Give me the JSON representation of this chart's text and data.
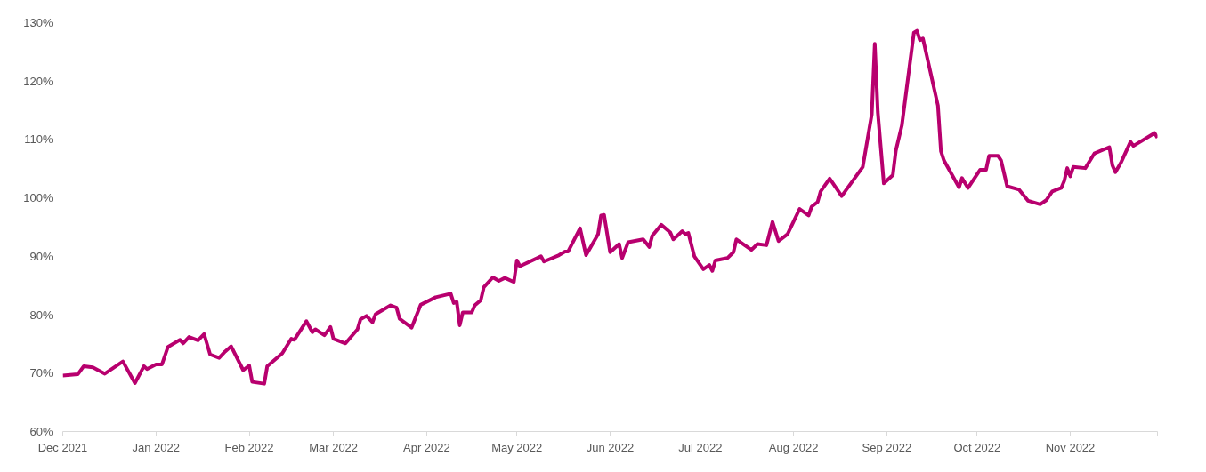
{
  "chart_data": {
    "type": "line",
    "line_style": "solid",
    "marker": "none",
    "grid": false,
    "x": [
      "2021-12-01",
      "2021-12-06",
      "2021-12-08",
      "2021-12-11",
      "2021-12-15",
      "2021-12-21",
      "2021-12-25",
      "2021-12-28",
      "2021-12-29",
      "2022-01-01",
      "2022-01-03",
      "2022-01-05",
      "2022-01-09",
      "2022-01-10",
      "2022-01-12",
      "2022-01-15",
      "2022-01-17",
      "2022-01-19",
      "2022-01-22",
      "2022-01-24",
      "2022-01-26",
      "2022-01-30",
      "2022-02-01",
      "2022-02-02",
      "2022-02-06",
      "2022-02-07",
      "2022-02-12",
      "2022-02-15",
      "2022-02-16",
      "2022-02-20",
      "2022-02-22",
      "2022-02-23",
      "2022-02-26",
      "2022-02-28",
      "2022-03-01",
      "2022-03-05",
      "2022-03-09",
      "2022-03-10",
      "2022-03-12",
      "2022-03-14",
      "2022-03-15",
      "2022-03-20",
      "2022-03-22",
      "2022-03-23",
      "2022-03-27",
      "2022-03-30",
      "2022-04-04",
      "2022-04-09",
      "2022-04-10",
      "2022-04-11",
      "2022-04-12",
      "2022-04-13",
      "2022-04-16",
      "2022-04-17",
      "2022-04-19",
      "2022-04-20",
      "2022-04-23",
      "2022-04-25",
      "2022-04-27",
      "2022-04-30",
      "2022-05-01",
      "2022-05-02",
      "2022-05-09",
      "2022-05-10",
      "2022-05-15",
      "2022-05-17",
      "2022-05-18",
      "2022-05-22",
      "2022-05-24",
      "2022-05-28",
      "2022-05-29",
      "2022-05-30",
      "2022-06-01",
      "2022-06-04",
      "2022-06-05",
      "2022-06-07",
      "2022-06-12",
      "2022-06-14",
      "2022-06-15",
      "2022-06-18",
      "2022-06-21",
      "2022-06-22",
      "2022-06-25",
      "2022-06-26",
      "2022-06-27",
      "2022-06-29",
      "2022-07-02",
      "2022-07-04",
      "2022-07-05",
      "2022-07-06",
      "2022-07-10",
      "2022-07-12",
      "2022-07-13",
      "2022-07-18",
      "2022-07-20",
      "2022-07-23",
      "2022-07-25",
      "2022-07-27",
      "2022-07-30",
      "2022-08-03",
      "2022-08-06",
      "2022-08-07",
      "2022-08-09",
      "2022-08-10",
      "2022-08-13",
      "2022-08-17",
      "2022-08-24",
      "2022-08-27",
      "2022-08-28",
      "2022-08-29",
      "2022-08-31",
      "2022-09-03",
      "2022-09-04",
      "2022-09-06",
      "2022-09-10",
      "2022-09-11",
      "2022-09-12",
      "2022-09-13",
      "2022-09-18",
      "2022-09-19",
      "2022-09-20",
      "2022-09-25",
      "2022-09-26",
      "2022-09-28",
      "2022-10-02",
      "2022-10-04",
      "2022-10-05",
      "2022-10-08",
      "2022-10-09",
      "2022-10-11",
      "2022-10-15",
      "2022-10-18",
      "2022-10-22",
      "2022-10-24",
      "2022-10-26",
      "2022-10-29",
      "2022-10-30",
      "2022-10-31",
      "2022-11-01",
      "2022-11-02",
      "2022-11-06",
      "2022-11-09",
      "2022-11-14",
      "2022-11-15",
      "2022-11-16",
      "2022-11-18",
      "2022-11-21",
      "2022-11-22",
      "2022-11-29",
      "2022-11-30"
    ],
    "series": [
      {
        "color": "#b8006e",
        "values": [
          69.6,
          69.8,
          71.2,
          71.0,
          69.9,
          72.0,
          68.3,
          71.2,
          70.7,
          71.5,
          71.5,
          74.5,
          75.7,
          75.1,
          76.2,
          75.6,
          76.7,
          73.2,
          72.6,
          73.7,
          74.6,
          70.5,
          71.3,
          68.5,
          68.2,
          71.2,
          73.4,
          75.9,
          75.7,
          78.9,
          77.0,
          77.5,
          76.5,
          77.9,
          75.9,
          75.1,
          77.5,
          79.2,
          79.8,
          78.7,
          80.1,
          81.6,
          81.2,
          79.3,
          77.8,
          81.7,
          83.0,
          83.6,
          82.0,
          82.2,
          78.2,
          80.4,
          80.4,
          81.6,
          82.5,
          84.7,
          86.4,
          85.8,
          86.3,
          85.6,
          89.3,
          88.3,
          90.0,
          89.1,
          90.2,
          90.8,
          90.8,
          94.8,
          90.2,
          93.8,
          97.0,
          97.1,
          90.7,
          92.1,
          89.7,
          92.4,
          92.9,
          91.6,
          93.5,
          95.4,
          94.1,
          92.9,
          94.3,
          93.8,
          94.0,
          90.0,
          87.8,
          88.5,
          87.5,
          89.3,
          89.7,
          90.7,
          92.9,
          91.1,
          92.1,
          91.9,
          95.9,
          92.6,
          93.8,
          98.1,
          97.0,
          98.5,
          99.3,
          101.1,
          103.3,
          100.3,
          105.3,
          114.3,
          126.4,
          114.7,
          102.5,
          103.9,
          108.1,
          112.4,
          128.3,
          128.6,
          127.0,
          127.3,
          115.8,
          108.0,
          106.4,
          101.8,
          103.4,
          101.7,
          104.8,
          104.8,
          107.2,
          107.2,
          106.4,
          102.0,
          101.4,
          99.5,
          98.9,
          99.6,
          101.1,
          101.7,
          102.9,
          105.1,
          103.7,
          105.3,
          105.1,
          107.6,
          108.7,
          105.6,
          104.4,
          106.2,
          109.6,
          108.9,
          111.1,
          110.3
        ]
      }
    ],
    "xlim": [
      "2021-12-01",
      "2022-11-30"
    ],
    "xticks": [
      {
        "value": "2021-12-01",
        "label": "Dec 2021"
      },
      {
        "value": "2022-01-01",
        "label": "Jan 2022"
      },
      {
        "value": "2022-02-01",
        "label": "Feb 2022"
      },
      {
        "value": "2022-03-01",
        "label": "Mar 2022"
      },
      {
        "value": "2022-04-01",
        "label": "Apr 2022"
      },
      {
        "value": "2022-05-01",
        "label": "May 2022"
      },
      {
        "value": "2022-06-01",
        "label": "Jun 2022"
      },
      {
        "value": "2022-07-01",
        "label": "Jul 2022"
      },
      {
        "value": "2022-08-01",
        "label": "Aug 2022"
      },
      {
        "value": "2022-09-01",
        "label": "Sep 2022"
      },
      {
        "value": "2022-10-01",
        "label": "Oct 2022"
      },
      {
        "value": "2022-11-01",
        "label": "Nov 2022"
      },
      {
        "value": "2022-11-30",
        "label": null
      }
    ],
    "ylim": [
      60,
      130
    ],
    "yticks": [
      {
        "value": 60,
        "label": "60%"
      },
      {
        "value": 70,
        "label": "70%"
      },
      {
        "value": 80,
        "label": "80%"
      },
      {
        "value": 90,
        "label": "90%"
      },
      {
        "value": 100,
        "label": "100%"
      },
      {
        "value": 110,
        "label": "110%"
      },
      {
        "value": 120,
        "label": "120%"
      },
      {
        "value": 130,
        "label": "130%"
      }
    ]
  }
}
